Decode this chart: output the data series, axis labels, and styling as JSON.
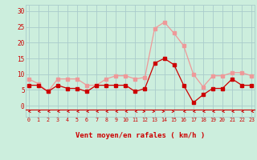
{
  "x": [
    0,
    1,
    2,
    3,
    4,
    5,
    6,
    7,
    8,
    9,
    10,
    11,
    12,
    13,
    14,
    15,
    16,
    17,
    18,
    19,
    20,
    21,
    22,
    23
  ],
  "wind_mean": [
    6.5,
    6.5,
    4.5,
    6.5,
    5.5,
    5.5,
    4.5,
    6.5,
    6.5,
    6.5,
    6.5,
    4.5,
    5.5,
    13.5,
    15.0,
    13.0,
    6.5,
    1.0,
    3.5,
    5.5,
    5.5,
    8.5,
    6.5,
    6.5
  ],
  "wind_gust": [
    8.5,
    7.0,
    4.5,
    8.5,
    8.5,
    8.5,
    6.5,
    6.5,
    8.5,
    9.5,
    9.5,
    8.5,
    9.0,
    24.5,
    26.5,
    23.0,
    19.0,
    10.0,
    6.0,
    9.5,
    9.5,
    10.5,
    10.5,
    9.5
  ],
  "mean_color": "#cc0000",
  "gust_color": "#ee9999",
  "bg_color": "#cceedd",
  "grid_color": "#aacccc",
  "arrow_color": "#cc0000",
  "xlabel": "Vent moyen/en rafales ( km/h )",
  "ylim": [
    0,
    32
  ],
  "xlim": [
    -0.3,
    23.3
  ],
  "yticks": [
    0,
    5,
    10,
    15,
    20,
    25,
    30
  ],
  "xticks": [
    0,
    1,
    2,
    3,
    4,
    5,
    6,
    7,
    8,
    9,
    10,
    11,
    12,
    13,
    14,
    15,
    16,
    17,
    18,
    19,
    20,
    21,
    22,
    23
  ],
  "arrow_dirs": [
    -1,
    -1,
    -1,
    -1,
    -1,
    -1,
    -1,
    -1,
    -1,
    -1,
    -1,
    -1,
    1,
    1,
    1,
    1,
    -1,
    -1,
    -1,
    -1,
    -1,
    -1,
    -1,
    -1
  ]
}
